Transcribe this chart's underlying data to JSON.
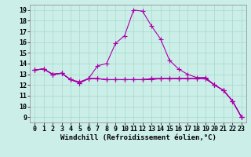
{
  "background_color": "#cceee8",
  "grid_color": "#aaddcc",
  "line_color": "#aa00aa",
  "marker": "+",
  "markersize": 4,
  "linewidth": 0.8,
  "xlabel": "Windchill (Refroidissement éolien,°C)",
  "xlabel_fontsize": 6.5,
  "tick_fontsize": 6,
  "ylim": [
    8.5,
    19.5
  ],
  "xlim": [
    -0.5,
    23.5
  ],
  "yticks": [
    9,
    10,
    11,
    12,
    13,
    14,
    15,
    16,
    17,
    18,
    19
  ],
  "xticks": [
    0,
    1,
    2,
    3,
    4,
    5,
    6,
    7,
    8,
    9,
    10,
    11,
    12,
    13,
    14,
    15,
    16,
    17,
    18,
    19,
    20,
    21,
    22,
    23
  ],
  "line1": [
    13.4,
    13.5,
    13.0,
    13.1,
    12.5,
    12.2,
    12.6,
    12.6,
    12.5,
    12.5,
    12.5,
    12.5,
    12.5,
    12.5,
    12.6,
    12.6,
    12.6,
    12.6,
    12.6,
    12.6,
    12.0,
    11.5,
    10.5,
    9.0
  ],
  "line2": [
    13.4,
    13.5,
    13.0,
    13.1,
    12.5,
    12.2,
    12.6,
    13.8,
    14.0,
    15.9,
    16.6,
    19.0,
    18.9,
    17.5,
    16.3,
    14.3,
    13.5,
    13.0,
    12.7,
    12.7,
    12.0,
    11.5,
    10.5,
    9.0
  ],
  "line3": [
    13.4,
    13.5,
    13.0,
    13.1,
    12.5,
    12.2,
    12.6,
    12.6,
    12.5,
    12.5,
    12.5,
    12.5,
    12.5,
    12.6,
    12.6,
    12.6,
    12.6,
    12.6,
    12.6,
    12.6,
    12.0,
    11.5,
    10.5,
    9.0
  ],
  "line4": [
    13.4,
    13.5,
    13.0,
    13.1,
    12.5,
    12.3,
    12.6,
    12.6,
    12.5,
    12.5,
    12.5,
    12.5,
    12.5,
    12.6,
    12.6,
    12.6,
    12.6,
    12.6,
    12.6,
    12.6,
    12.0,
    11.5,
    10.5,
    9.0
  ]
}
